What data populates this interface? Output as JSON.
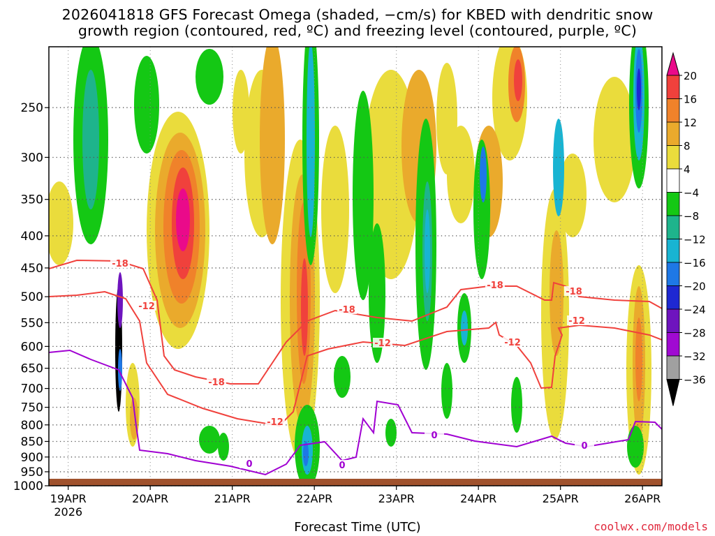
{
  "chart_data": {
    "type": "heatmap",
    "title_line1": "2026041818 GFS Forecast Omega (shaded, −cm/s) for KBED with dendritic snow",
    "title_line2": "growth region (contoured, red, ºC) and freezing level (contoured, purple, ºC)",
    "xlabel": "Forecast Time (UTC)",
    "ylabel": "",
    "x_ticks": [
      "19APR",
      "20APR",
      "21APR",
      "22APR",
      "23APR",
      "24APR",
      "25APR",
      "26APR"
    ],
    "x_year": "2026",
    "y_ticks": [
      250,
      300,
      350,
      400,
      450,
      500,
      550,
      600,
      650,
      700,
      750,
      800,
      850,
      900,
      950,
      1000
    ],
    "y_range": [
      200,
      1000
    ],
    "y_scale": "log-pressure",
    "grid": true,
    "colorbar": {
      "tick_labels": [
        "20",
        "16",
        "12",
        "8",
        "4",
        "−4",
        "−8",
        "−12",
        "−16",
        "−20",
        "−24",
        "−28",
        "−32",
        "−36"
      ],
      "colors": [
        "#ea0a8a",
        "#f0413c",
        "#f0822a",
        "#eaaa2c",
        "#eadc3c",
        "#ffffff",
        "#14c814",
        "#1eb48c",
        "#18b4d2",
        "#1e78e6",
        "#1e28d2",
        "#6e14be",
        "#a00ad2",
        "#a0a0a0",
        "#000000"
      ]
    },
    "contours": [
      {
        "label": "-18",
        "color": "#f0413c"
      },
      {
        "label": "-12",
        "color": "#f0413c"
      },
      {
        "label": "0",
        "color": "#a000d2"
      }
    ],
    "watermark": "coolwx.com/models"
  }
}
